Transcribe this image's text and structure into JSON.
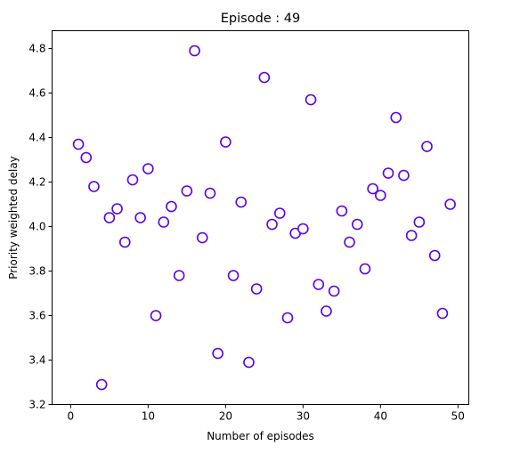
{
  "chart_data": {
    "type": "scatter",
    "title": "Episode : 49",
    "xlabel": "Number of episodes",
    "ylabel": "Priority weighted delay",
    "xlim": [
      -2.4,
      51.4
    ],
    "ylim": [
      3.2,
      4.88
    ],
    "xticks": [
      0,
      10,
      20,
      30,
      40,
      50
    ],
    "yticks": [
      3.2,
      3.4,
      3.6,
      3.8,
      4.0,
      4.2,
      4.4,
      4.6,
      4.8
    ],
    "grid": false,
    "marker_stroke": "#5b00e6",
    "marker_fill": "#ffffff",
    "series": [
      {
        "x": [
          1,
          2,
          3,
          4,
          5,
          6,
          7,
          8,
          9,
          10,
          11,
          12,
          13,
          14,
          15,
          16,
          17,
          18,
          19,
          20,
          21,
          22,
          23,
          24,
          25,
          26,
          27,
          28,
          29,
          30,
          31,
          32,
          33,
          34,
          35,
          36,
          37,
          38,
          39,
          40,
          41,
          42,
          43,
          44,
          45,
          46,
          47,
          48,
          49
        ],
        "y": [
          4.37,
          4.31,
          4.18,
          3.29,
          4.04,
          4.08,
          3.93,
          4.21,
          4.04,
          4.26,
          3.6,
          4.02,
          4.09,
          3.78,
          4.16,
          4.79,
          3.95,
          4.15,
          3.43,
          4.38,
          3.78,
          4.11,
          3.39,
          3.72,
          4.67,
          4.01,
          4.06,
          3.59,
          3.97,
          3.99,
          4.57,
          3.74,
          3.62,
          3.71,
          4.07,
          3.93,
          4.01,
          3.81,
          4.17,
          4.14,
          4.24,
          4.49,
          4.23,
          3.96,
          4.02,
          4.36,
          3.87,
          3.61,
          4.1
        ]
      }
    ]
  }
}
